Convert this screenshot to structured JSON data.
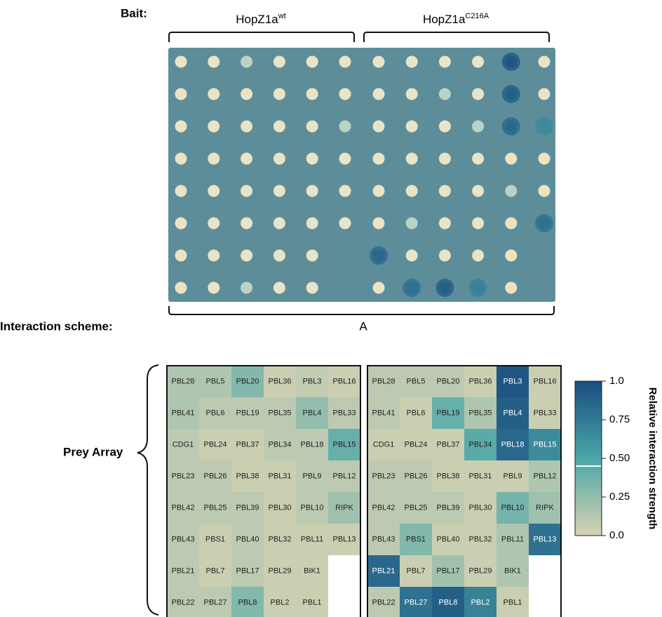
{
  "bait_label": "Bait:",
  "baits": [
    {
      "name": "HopZ1a",
      "sup": "wt"
    },
    {
      "name": "HopZ1a",
      "sup": "C216A"
    }
  ],
  "scheme_label": "Interaction scheme:",
  "panel_label": "A",
  "prey_label": "Prey Array",
  "chart_data": {
    "type": "heatmap",
    "colorbar": {
      "label": "Relative interaction strength",
      "lim": [
        0,
        1
      ],
      "ticks": [
        {
          "value": 0,
          "label": "0.0"
        },
        0.25,
        {
          "value": 0.5,
          "label": "0.50"
        },
        0.75,
        {
          "value": 1,
          "label": "1.0"
        }
      ],
      "marker": 0.45,
      "colors": [
        "#d8d3b3",
        "#4ba6a7",
        "#1a4d80"
      ]
    },
    "panels": [
      {
        "labels": [
          [
            "PBL28",
            "PBL5",
            "PBL20",
            "PBL36",
            "PBL3",
            "PBL16"
          ],
          [
            "PBL41",
            "PBL6",
            "PBL19",
            "PBL35",
            "PBL4",
            "PBL33"
          ],
          [
            "CDG1",
            "PBL24",
            "PBL37",
            "PBL34",
            "PBL18",
            "PBL15"
          ],
          [
            "PBL23",
            "PBL26",
            "PBL38",
            "PBL31",
            "PBL9",
            "PBL12"
          ],
          [
            "PBL42",
            "PBL25",
            "PBL39",
            "PBL30",
            "PBL10",
            "RIPK"
          ],
          [
            "PBL43",
            "PBS1",
            "PBL40",
            "PBL32",
            "PBL11",
            "PBL13"
          ],
          [
            "PBL21",
            "PBL7",
            "PBL17",
            "PBL29",
            "BIK1",
            null
          ],
          [
            "PBL22",
            "PBL27",
            "PBL8",
            "PBL2",
            "PBL1",
            null
          ]
        ],
        "values": [
          [
            0.15,
            0.15,
            0.3,
            0.05,
            0.08,
            0.05
          ],
          [
            0.15,
            0.1,
            0.1,
            0.1,
            0.25,
            0.1
          ],
          [
            0.1,
            0.05,
            0.05,
            0.1,
            0.1,
            0.4
          ],
          [
            0.1,
            0.1,
            0.05,
            0.05,
            0.1,
            0.1
          ],
          [
            0.1,
            0.1,
            0.1,
            0.05,
            0.1,
            0.2
          ],
          [
            0.1,
            0.05,
            0.1,
            0.05,
            0.05,
            0.05
          ],
          [
            0.1,
            0.05,
            0.1,
            0.05,
            0.05,
            null
          ],
          [
            0.1,
            0.1,
            0.3,
            0.05,
            0.05,
            null
          ]
        ]
      },
      {
        "labels": [
          [
            "PBL28",
            "PBL5",
            "PBL20",
            "PBL36",
            "PBL3",
            "PBL16"
          ],
          [
            "PBL41",
            "PBL6",
            "PBL19",
            "PBL35",
            "PBL4",
            "PBL33"
          ],
          [
            "CDG1",
            "PBL24",
            "PBL37",
            "PBL34",
            "PBL18",
            "PBL15"
          ],
          [
            "PBL23",
            "PBL26",
            "PBL38",
            "PBL31",
            "PBL9",
            "PBL12"
          ],
          [
            "PBL42",
            "PBL25",
            "PBL39",
            "PBL30",
            "PBL10",
            "RIPK"
          ],
          [
            "PBL43",
            "PBS1",
            "PBL40",
            "PBL32",
            "PBL11",
            "PBL13"
          ],
          [
            "PBL21",
            "PBL7",
            "PBL17",
            "PBL29",
            "BIK1",
            null
          ],
          [
            "PBL22",
            "PBL27",
            "PBL8",
            "PBL2",
            "PBL1",
            null
          ]
        ],
        "values": [
          [
            0.1,
            0.1,
            0.1,
            0.05,
            0.95,
            0.05
          ],
          [
            0.1,
            0.05,
            0.4,
            0.15,
            0.9,
            0.05
          ],
          [
            0.05,
            0.05,
            0.05,
            0.45,
            0.85,
            0.65
          ],
          [
            0.1,
            0.1,
            0.05,
            0.05,
            0.05,
            0.15
          ],
          [
            0.1,
            0.1,
            0.1,
            0.05,
            0.35,
            0.2
          ],
          [
            0.1,
            0.3,
            0.05,
            0.05,
            0.15,
            0.8
          ],
          [
            0.85,
            0.05,
            0.2,
            0.05,
            0.15,
            null
          ],
          [
            0.1,
            0.8,
            0.9,
            0.7,
            0.05,
            null
          ]
        ]
      }
    ]
  }
}
